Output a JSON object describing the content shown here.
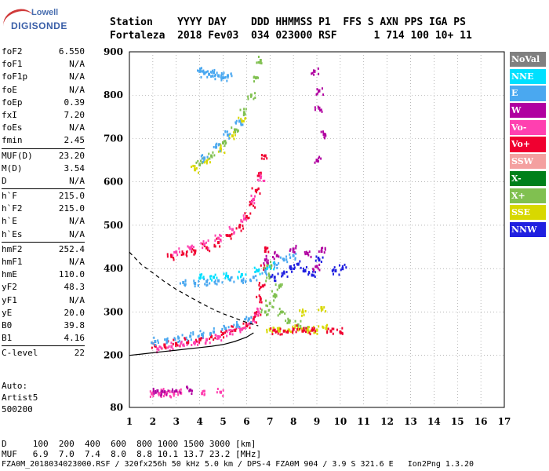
{
  "logo": {
    "line1": "Lowell",
    "line2": "DIGISONDE"
  },
  "header": {
    "line1": "Station    YYYY DAY    DDD HHMMSS P1  FFS S AXN PPS IGA PS",
    "line2": "Fortaleza  2018 Fev03  034 023000 RSF      1 714 100 10+ 11"
  },
  "params": {
    "group1": [
      {
        "label": "foF2",
        "value": "6.550"
      },
      {
        "label": "foF1",
        "value": "N/A"
      },
      {
        "label": "foF1p",
        "value": "N/A"
      },
      {
        "label": "foE",
        "value": "N/A"
      },
      {
        "label": "foEp",
        "value": "0.39"
      },
      {
        "label": "fxI",
        "value": "7.20"
      },
      {
        "label": "foEs",
        "value": "N/A"
      },
      {
        "label": "fmin",
        "value": "2.45"
      }
    ],
    "group2": [
      {
        "label": "MUF(D)",
        "value": "23.20"
      },
      {
        "label": "M(D)",
        "value": "3.54"
      },
      {
        "label": "D",
        "value": "N/A"
      }
    ],
    "group3": [
      {
        "label": "h`F",
        "value": "215.0"
      },
      {
        "label": "h`F2",
        "value": "215.0"
      },
      {
        "label": "h`E",
        "value": "N/A"
      },
      {
        "label": "h`Es",
        "value": "N/A"
      }
    ],
    "group4": [
      {
        "label": "hmF2",
        "value": "252.4"
      },
      {
        "label": "hmF1",
        "value": "N/A"
      },
      {
        "label": "hmE",
        "value": "110.0"
      },
      {
        "label": "yF2",
        "value": "48.3"
      },
      {
        "label": "yF1",
        "value": "N/A"
      },
      {
        "label": "yE",
        "value": "20.0"
      },
      {
        "label": "B0",
        "value": "39.8"
      },
      {
        "label": "B1",
        "value": "4.16"
      }
    ],
    "group5": [
      {
        "label": "C-level",
        "value": "22"
      }
    ]
  },
  "auto": {
    "line1": "Auto:",
    "line2": "Artist5",
    "line3": "500200"
  },
  "legend": [
    {
      "label": "NoVal",
      "color": "#808080"
    },
    {
      "label": "NNE",
      "color": "#00e0ff"
    },
    {
      "label": "E",
      "color": "#4aa8f0"
    },
    {
      "label": "W",
      "color": "#b000a0"
    },
    {
      "label": "Vo-",
      "color": "#ff40b0"
    },
    {
      "label": "Vo+",
      "color": "#f00030"
    },
    {
      "label": "SSW",
      "color": "#f4a0a0"
    },
    {
      "label": "X-",
      "color": "#00801a"
    },
    {
      "label": "X+",
      "color": "#80c050"
    },
    {
      "label": "SSE",
      "color": "#d8d800"
    },
    {
      "label": "NNW",
      "color": "#2020e0"
    }
  ],
  "bottom": {
    "line1": "D     100  200  400  600  800 1000 1500 3000 [km]",
    "line2": "MUF   6.9  7.0  7.4  8.0  8.8 10.1 13.7 23.2 [MHz]"
  },
  "footer": "FZA0M_2018034023000.RSF / 320fx256h 50 kHz 5.0 km / DPS-4 FZA0M 904 / 3.9 S 321.6 E   Ion2Png 1.3.20",
  "chart_data": {
    "type": "scatter",
    "xlim": [
      1,
      17
    ],
    "ylim": [
      80,
      900
    ],
    "xticks": [
      "1",
      "2",
      "3",
      "4",
      "5",
      "6",
      "7",
      "8",
      "9",
      "10",
      "11",
      "12",
      "13",
      "14",
      "15",
      "16",
      "17"
    ],
    "yticks": [
      "80",
      "200",
      "300",
      "400",
      "500",
      "600",
      "700",
      "800",
      "900"
    ],
    "grid": "dotted",
    "clusters": [
      {
        "name": "F2 trace",
        "color": "#f00030",
        "points": [
          [
            2.1,
            222
          ],
          [
            2.5,
            224
          ],
          [
            3.0,
            227
          ],
          [
            3.5,
            232
          ],
          [
            4.0,
            237
          ],
          [
            4.5,
            243
          ],
          [
            5.0,
            250
          ],
          [
            5.5,
            258
          ],
          [
            6.0,
            268
          ],
          [
            6.3,
            282
          ],
          [
            6.5,
            300
          ],
          [
            6.6,
            330
          ],
          [
            6.7,
            360
          ],
          [
            6.75,
            400
          ],
          [
            6.8,
            440
          ]
        ]
      },
      {
        "name": "F2 trace 2",
        "color": "#ff40b0",
        "points": [
          [
            2.2,
            215
          ],
          [
            2.8,
            220
          ],
          [
            3.3,
            224
          ],
          [
            3.8,
            230
          ],
          [
            4.3,
            236
          ],
          [
            4.8,
            243
          ],
          [
            5.3,
            250
          ],
          [
            5.8,
            260
          ],
          [
            6.2,
            275
          ],
          [
            6.5,
            300
          ]
        ]
      },
      {
        "name": "F2 E",
        "color": "#4aa8f0",
        "points": [
          [
            2.1,
            232
          ],
          [
            2.6,
            236
          ],
          [
            3.1,
            240
          ],
          [
            3.6,
            244
          ],
          [
            4.1,
            248
          ],
          [
            4.6,
            254
          ],
          [
            5.1,
            262
          ],
          [
            5.6,
            270
          ],
          [
            6.1,
            284
          ]
        ]
      },
      {
        "name": "Second hop",
        "color": "#f00030",
        "points": [
          [
            2.8,
            428
          ],
          [
            3.3,
            434
          ],
          [
            3.8,
            440
          ],
          [
            4.3,
            448
          ],
          [
            4.8,
            460
          ],
          [
            5.3,
            476
          ],
          [
            5.7,
            496
          ],
          [
            6.0,
            520
          ],
          [
            6.2,
            550
          ],
          [
            6.4,
            580
          ],
          [
            6.6,
            620
          ],
          [
            6.8,
            660
          ]
        ]
      },
      {
        "name": "Second hop b",
        "color": "#ff40b0",
        "points": [
          [
            3.0,
            438
          ],
          [
            3.6,
            446
          ],
          [
            4.2,
            456
          ],
          [
            4.8,
            470
          ],
          [
            5.4,
            490
          ],
          [
            5.9,
            515
          ],
          [
            6.3,
            560
          ],
          [
            6.6,
            610
          ]
        ]
      },
      {
        "name": "Third hop",
        "color": "#80c050",
        "points": [
          [
            4.0,
            640
          ],
          [
            4.5,
            660
          ],
          [
            5.0,
            690
          ],
          [
            5.5,
            720
          ],
          [
            5.9,
            760
          ],
          [
            6.2,
            800
          ],
          [
            6.4,
            840
          ],
          [
            6.6,
            880
          ]
        ]
      },
      {
        "name": "Third hop y",
        "color": "#d8d800",
        "points": [
          [
            3.8,
            628
          ],
          [
            4.3,
            648
          ],
          [
            4.9,
            676
          ],
          [
            5.4,
            706
          ],
          [
            5.8,
            740
          ]
        ]
      },
      {
        "name": "Third hop E",
        "color": "#4aa8f0",
        "points": [
          [
            4.2,
            655
          ],
          [
            4.7,
            680
          ],
          [
            5.2,
            708
          ],
          [
            5.7,
            740
          ]
        ]
      },
      {
        "name": "High E",
        "color": "#4aa8f0",
        "points": [
          [
            4.0,
            855
          ],
          [
            4.2,
            850
          ],
          [
            4.4,
            848
          ],
          [
            4.6,
            852
          ],
          [
            4.8,
            845
          ],
          [
            5.0,
            840
          ],
          [
            5.2,
            845
          ]
        ]
      },
      {
        "name": "Spread E",
        "color": "#4aa8f0",
        "points": [
          [
            3.3,
            368
          ],
          [
            3.8,
            366
          ],
          [
            4.3,
            370
          ],
          [
            4.8,
            372
          ],
          [
            5.3,
            374
          ],
          [
            5.8,
            372
          ],
          [
            6.3,
            380
          ],
          [
            6.8,
            395
          ],
          [
            7.2,
            410
          ],
          [
            7.6,
            420
          ],
          [
            8.0,
            430
          ]
        ]
      },
      {
        "name": "Spread NNE",
        "color": "#00e0ff",
        "points": [
          [
            4.0,
            378
          ],
          [
            4.6,
            380
          ],
          [
            5.2,
            382
          ],
          [
            5.8,
            386
          ],
          [
            6.5,
            395
          ],
          [
            7.0,
            405
          ]
        ]
      },
      {
        "name": "Spread F",
        "color": "#80c050",
        "points": [
          [
            6.8,
            300
          ],
          [
            7.0,
            320
          ],
          [
            7.2,
            340
          ],
          [
            7.4,
            360
          ],
          [
            7.0,
            380
          ],
          [
            6.9,
            410
          ],
          [
            7.5,
            300
          ],
          [
            7.8,
            280
          ],
          [
            8.2,
            270
          ],
          [
            8.6,
            260
          ]
        ]
      },
      {
        "name": "Spread F y",
        "color": "#d8d800",
        "points": [
          [
            7.0,
            260
          ],
          [
            7.4,
            262
          ],
          [
            7.8,
            258
          ],
          [
            8.2,
            262
          ],
          [
            8.6,
            260
          ],
          [
            9.0,
            258
          ],
          [
            9.4,
            262
          ],
          [
            8.4,
            300
          ],
          [
            9.2,
            310
          ]
        ]
      },
      {
        "name": "Spread F red",
        "color": "#f00030",
        "points": [
          [
            7.2,
            258
          ],
          [
            7.6,
            256
          ],
          [
            8.0,
            260
          ],
          [
            8.4,
            256
          ],
          [
            8.8,
            258
          ],
          [
            9.6,
            256
          ],
          [
            10.0,
            254
          ]
        ]
      },
      {
        "name": "Spread NNW",
        "color": "#2020e0",
        "points": [
          [
            7.2,
            380
          ],
          [
            7.6,
            390
          ],
          [
            7.9,
            400
          ],
          [
            8.2,
            410
          ],
          [
            8.5,
            395
          ],
          [
            8.8,
            385
          ],
          [
            9.1,
            420
          ],
          [
            9.8,
            395
          ],
          [
            10.1,
            400
          ]
        ]
      },
      {
        "name": "Spread W",
        "color": "#b000a0",
        "points": [
          [
            6.8,
            420
          ],
          [
            7.3,
            430
          ],
          [
            8.0,
            445
          ],
          [
            8.6,
            435
          ],
          [
            9.2,
            440
          ],
          [
            9.0,
            405
          ]
        ]
      },
      {
        "name": "Es low",
        "color": "#ff40b0",
        "points": [
          [
            2.0,
            113
          ],
          [
            2.3,
            112
          ],
          [
            2.6,
            114
          ],
          [
            2.9,
            112
          ],
          [
            3.2,
            113
          ],
          [
            4.1,
            112
          ],
          [
            4.9,
            115
          ]
        ]
      },
      {
        "name": "Es low b",
        "color": "#b000a0",
        "points": [
          [
            2.2,
            118
          ],
          [
            2.5,
            116
          ],
          [
            3.0,
            118
          ],
          [
            3.6,
            120
          ]
        ]
      },
      {
        "name": "Outliers",
        "color": "#b000a0",
        "points": [
          [
            8.9,
            855
          ],
          [
            9.1,
            810
          ],
          [
            9.1,
            770
          ],
          [
            9.0,
            650
          ],
          [
            9.3,
            710
          ]
        ]
      }
    ],
    "curves": [
      {
        "name": "dashed",
        "style": "dashed",
        "points": [
          [
            1.0,
            438
          ],
          [
            1.5,
            410
          ],
          [
            2.0,
            390
          ],
          [
            2.5,
            370
          ],
          [
            3.0,
            352
          ],
          [
            3.5,
            337
          ],
          [
            4.0,
            322
          ],
          [
            4.5,
            308
          ],
          [
            5.0,
            296
          ],
          [
            5.5,
            286
          ],
          [
            6.0,
            276
          ],
          [
            6.5,
            268
          ]
        ]
      },
      {
        "name": "solid",
        "style": "solid",
        "points": [
          [
            1.0,
            200
          ],
          [
            1.5,
            203
          ],
          [
            2.0,
            206
          ],
          [
            2.5,
            209
          ],
          [
            3.0,
            212
          ],
          [
            3.5,
            215
          ],
          [
            4.0,
            218
          ],
          [
            4.5,
            221
          ],
          [
            5.0,
            225
          ],
          [
            5.5,
            232
          ],
          [
            6.0,
            242
          ],
          [
            6.3,
            252
          ]
        ]
      }
    ]
  }
}
